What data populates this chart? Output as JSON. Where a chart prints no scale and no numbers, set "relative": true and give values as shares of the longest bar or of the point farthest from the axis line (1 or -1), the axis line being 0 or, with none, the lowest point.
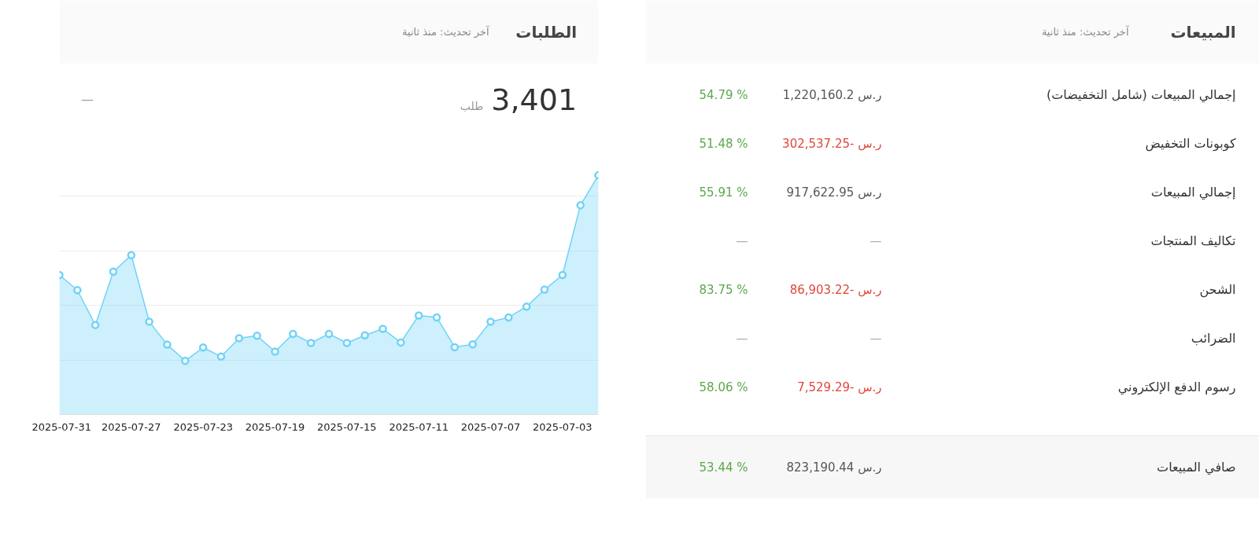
{
  "chart_data": [
    {
      "type": "area",
      "title": "الطلبات",
      "subtitle": "آخر تحديث: منذ ثانية",
      "annotations": [
        "3,401",
        "طلب",
        "—"
      ],
      "x": [
        "2025-07-31",
        "2025-07-30",
        "2025-07-29",
        "2025-07-28",
        "2025-07-27",
        "2025-07-26",
        "2025-07-25",
        "2025-07-24",
        "2025-07-23",
        "2025-07-22",
        "2025-07-21",
        "2025-07-20",
        "2025-07-19",
        "2025-07-18",
        "2025-07-17",
        "2025-07-16",
        "2025-07-15",
        "2025-07-14",
        "2025-07-13",
        "2025-07-12",
        "2025-07-11",
        "2025-07-10",
        "2025-07-09",
        "2025-07-08",
        "2025-07-07",
        "2025-07-06",
        "2025-07-05",
        "2025-07-04",
        "2025-07-03",
        "2025-07-02",
        "2025-07-01"
      ],
      "values": [
        0.583,
        0.52,
        0.374,
        0.597,
        0.666,
        0.388,
        0.292,
        0.224,
        0.28,
        0.242,
        0.319,
        0.329,
        0.263,
        0.337,
        0.299,
        0.337,
        0.299,
        0.331,
        0.358,
        0.301,
        0.414,
        0.406,
        0.281,
        0.293,
        0.388,
        0.406,
        0.451,
        0.522,
        0.583,
        0.875,
        1.0
      ],
      "relative": true,
      "color": "#6fd3f7",
      "grid": "y",
      "marker": "circle",
      "xlim": [
        "2025-07-31",
        "2025-07-01"
      ],
      "xticks": [
        "2025-07-31",
        "2025-07-27",
        "2025-07-23",
        "2025-07-19",
        "2025-07-15",
        "2025-07-11",
        "2025-07-07",
        "2025-07-03"
      ]
    },
    {
      "type": "other",
      "title": "المبيعات",
      "subtitle": "آخر تحديث: منذ ثانية",
      "annotations": [
        "إجمالي المبيعات (شامل التخفيضات)",
        "ر.س 1,220,160.2",
        "54.79 %",
        "كوبونات التخفيض",
        "ر.س -302,537.25",
        "51.48 %",
        "إجمالي المبيعات",
        "ر.س 917,622.95",
        "55.91 %",
        "تكاليف المنتجات",
        "—",
        "—",
        "الشحن",
        "ر.س -86,903.22",
        "83.75 %",
        "الضرائب",
        "—",
        "—",
        "رسوم الدفع الإلكتروني",
        "ر.س -7,529.29",
        "58.06 %",
        "صافي المبيعات",
        "ر.س 823,190.44",
        "53.44 %"
      ],
      "colors": [
        "#333333",
        "#555555",
        "#5aa84a",
        "#333333",
        "#e0463a",
        "#5aa84a",
        "#333333",
        "#555555",
        "#5aa84a",
        "#333333",
        "#aaaaaa",
        "#aaaaaa",
        "#333333",
        "#e0463a",
        "#5aa84a",
        "#333333",
        "#aaaaaa",
        "#aaaaaa",
        "#333333",
        "#e0463a",
        "#5aa84a",
        "#333333",
        "#555555",
        "#5aa84a"
      ]
    }
  ]
}
